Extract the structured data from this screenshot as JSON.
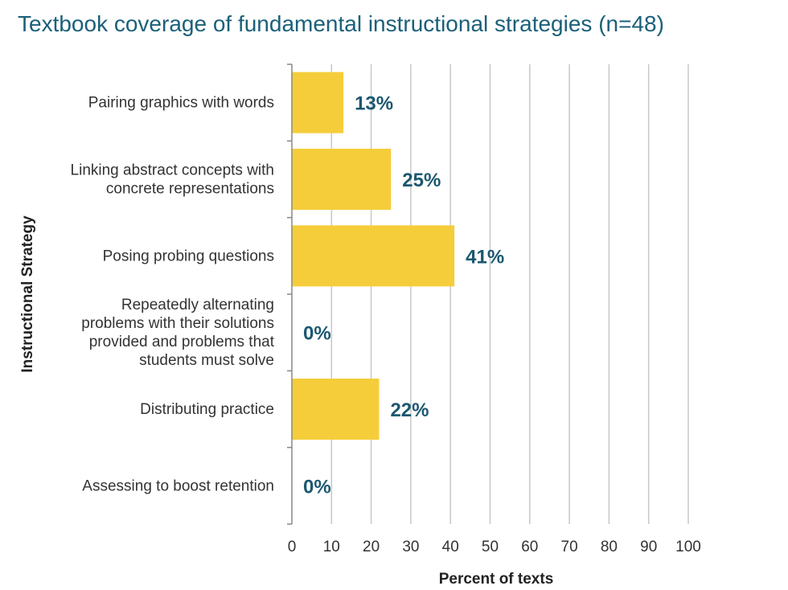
{
  "title": "Textbook coverage of fundamental instructional strategies (n=48)",
  "colors": {
    "title": "#1b6079",
    "bar": "#f5cd3b",
    "data_label": "#1b5870",
    "grid": "#c8c8c8",
    "axis": "#888888"
  },
  "chart_data": {
    "type": "bar",
    "orientation": "horizontal",
    "categories": [
      [
        "Pairing graphics with words"
      ],
      [
        "Linking abstract concepts with",
        "concrete representations"
      ],
      [
        "Posing probing questions"
      ],
      [
        "Repeatedly alternating",
        "problems with their solutions",
        "provided and problems that",
        "students must solve"
      ],
      [
        "Distributing practice"
      ],
      [
        "Assessing to boost retention"
      ]
    ],
    "values": [
      13,
      25,
      41,
      0,
      22,
      0
    ],
    "data_labels": [
      "13%",
      "25%",
      "41%",
      "0%",
      "22%",
      "0%"
    ],
    "xlabel": "Percent of texts",
    "ylabel": "Instructional Strategy",
    "xlim": [
      0,
      100
    ],
    "xticks": [
      0,
      10,
      20,
      30,
      40,
      50,
      60,
      70,
      80,
      90,
      100
    ],
    "grid": true
  }
}
